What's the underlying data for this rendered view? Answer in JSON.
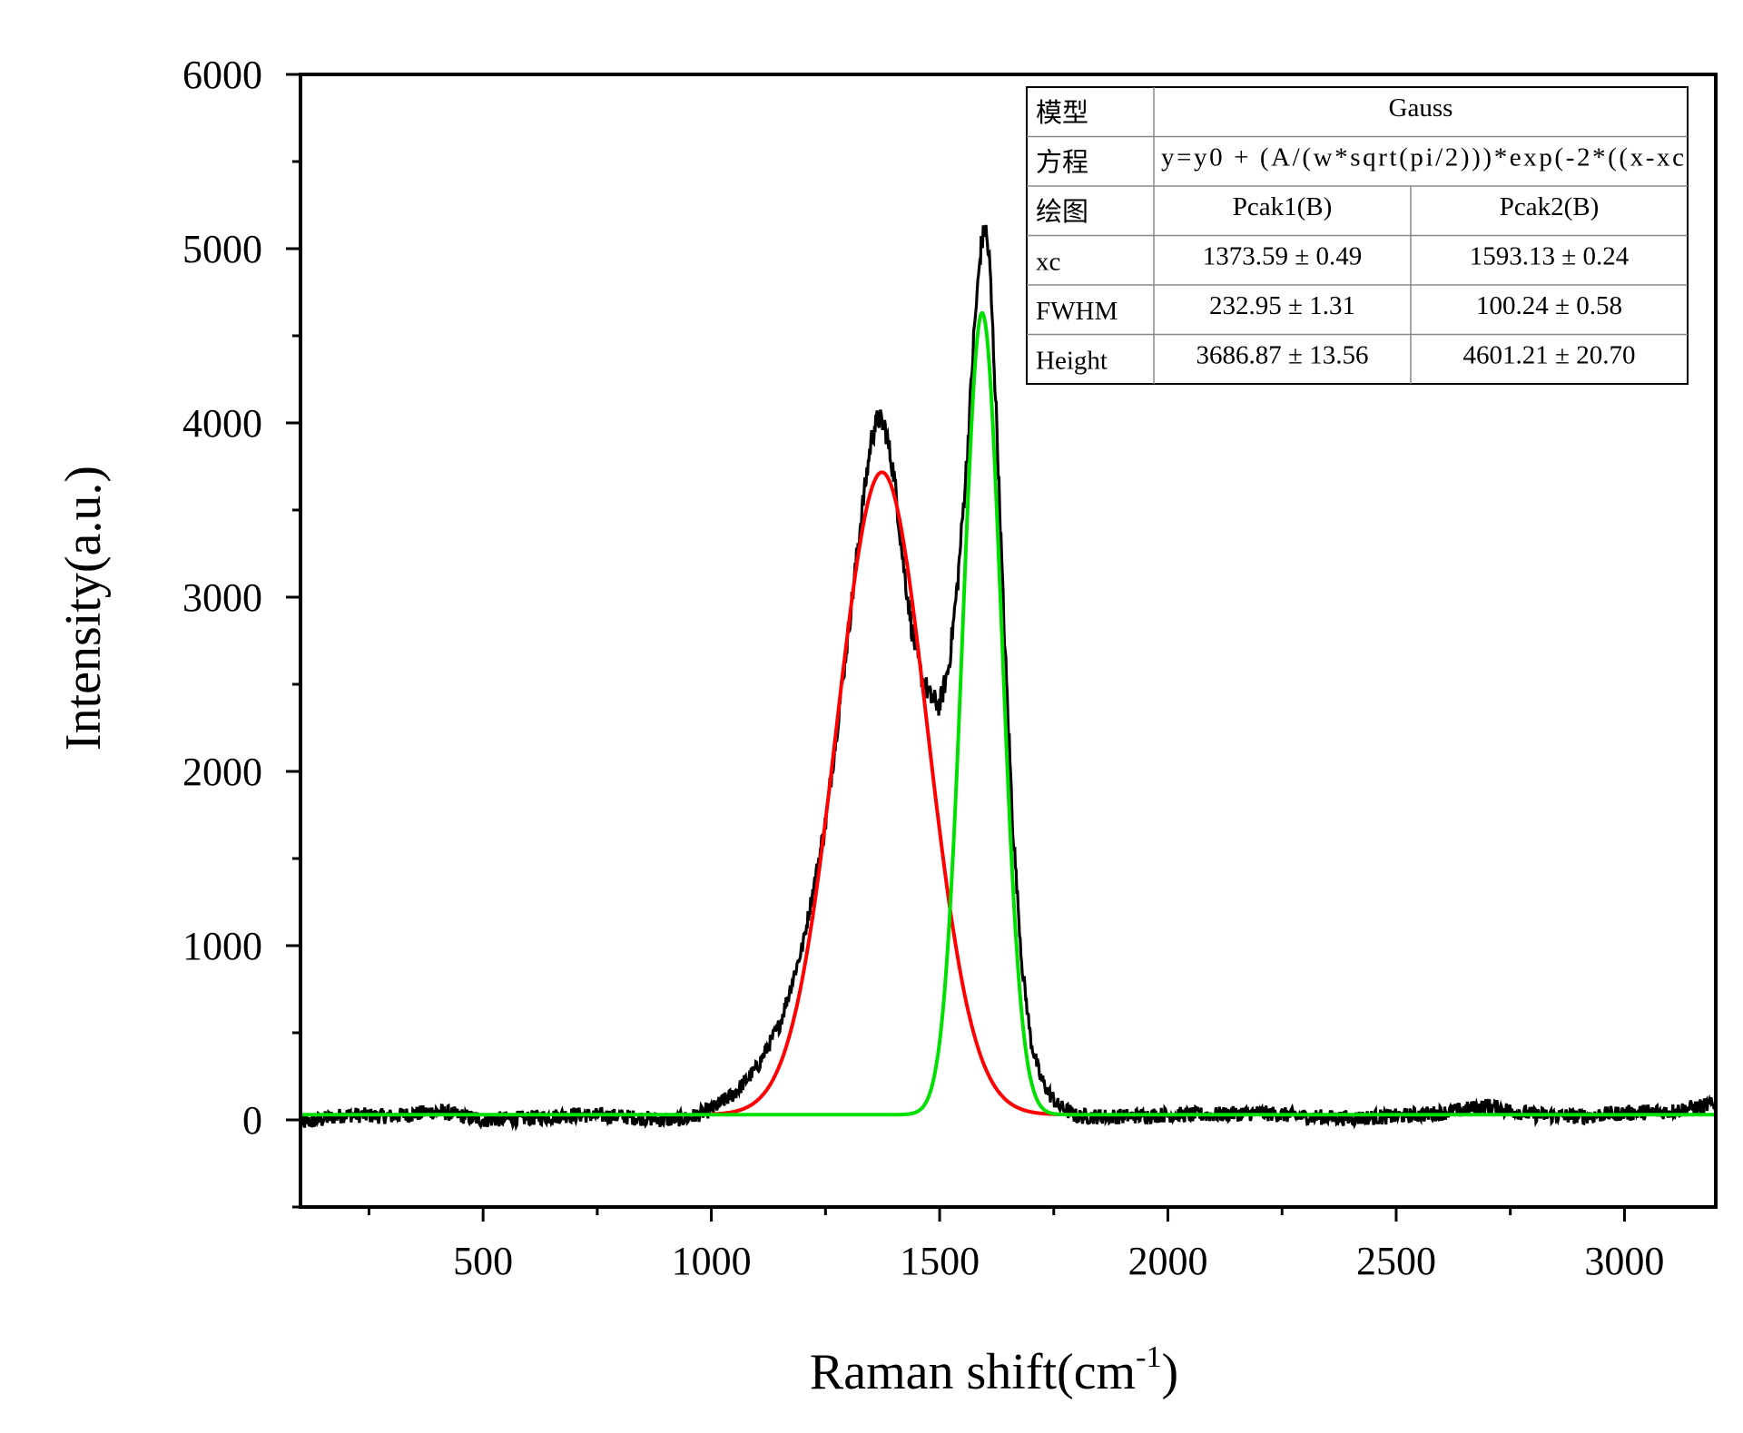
{
  "chart_data": {
    "type": "line",
    "xlabel": "Raman shift(cm",
    "xlabel_sup": "-1",
    "xlabel_close": ")",
    "ylabel": "Intensity(a.u.)",
    "xlim": [
      100,
      3200
    ],
    "ylim": [
      -500,
      6000
    ],
    "x_ticks": [
      500,
      1000,
      1500,
      2000,
      2500,
      3000
    ],
    "y_ticks": [
      0,
      1000,
      2000,
      3000,
      4000,
      5000,
      6000
    ],
    "grid": false,
    "baseline": 30,
    "series": [
      {
        "color": "#000000",
        "noisy": true,
        "points": [
          [
            100,
            -20
          ],
          [
            200,
            30
          ],
          [
            300,
            20
          ],
          [
            400,
            50
          ],
          [
            500,
            0
          ],
          [
            600,
            10
          ],
          [
            700,
            30
          ],
          [
            800,
            20
          ],
          [
            900,
            0
          ],
          [
            950,
            10
          ],
          [
            1000,
            60
          ],
          [
            1050,
            150
          ],
          [
            1100,
            300
          ],
          [
            1150,
            550
          ],
          [
            1200,
            1000
          ],
          [
            1250,
            1700
          ],
          [
            1300,
            2800
          ],
          [
            1330,
            3500
          ],
          [
            1350,
            3900
          ],
          [
            1365,
            4030
          ],
          [
            1380,
            3980
          ],
          [
            1400,
            3700
          ],
          [
            1420,
            3200
          ],
          [
            1440,
            2800
          ],
          [
            1460,
            2550
          ],
          [
            1480,
            2420
          ],
          [
            1500,
            2380
          ],
          [
            1520,
            2600
          ],
          [
            1540,
            3100
          ],
          [
            1560,
            3800
          ],
          [
            1575,
            4500
          ],
          [
            1590,
            5000
          ],
          [
            1600,
            5130
          ],
          [
            1610,
            4900
          ],
          [
            1625,
            4000
          ],
          [
            1640,
            2900
          ],
          [
            1660,
            1700
          ],
          [
            1680,
            900
          ],
          [
            1700,
            450
          ],
          [
            1720,
            250
          ],
          [
            1740,
            150
          ],
          [
            1760,
            80
          ],
          [
            1800,
            20
          ],
          [
            1900,
            20
          ],
          [
            2000,
            30
          ],
          [
            2100,
            30
          ],
          [
            2200,
            40
          ],
          [
            2300,
            20
          ],
          [
            2400,
            10
          ],
          [
            2500,
            20
          ],
          [
            2600,
            40
          ],
          [
            2700,
            80
          ],
          [
            2800,
            30
          ],
          [
            2900,
            20
          ],
          [
            3000,
            40
          ],
          [
            3100,
            50
          ],
          [
            3200,
            90
          ]
        ]
      },
      {
        "color": "#ff0000",
        "noisy": false,
        "gaussian": {
          "xc": 1373.59,
          "fwhm": 232.95,
          "height": 3686.87,
          "x_range": [
            1000,
            1800
          ]
        }
      },
      {
        "color": "#00e000",
        "noisy": false,
        "gaussian": {
          "xc": 1593.13,
          "fwhm": 100.24,
          "height": 4601.21,
          "x_range": [
            100,
            3200
          ]
        }
      }
    ],
    "table": {
      "rows": [
        {
          "label": "模型",
          "merged": "Gauss"
        },
        {
          "label": "方程",
          "merged": "y=y0 + (A/(w*sqrt(pi/2)))*exp(-2*((x-xc"
        },
        {
          "label": "绘图",
          "c1": "Pcak1(B)",
          "c2": "Pcak2(B)"
        },
        {
          "label": "xc",
          "c1": "1373.59 ± 0.49",
          "c2": "1593.13 ± 0.24"
        },
        {
          "label": "FWHM",
          "c1": "232.95 ± 1.31",
          "c2": "100.24 ± 0.58"
        },
        {
          "label": "Height",
          "c1": "3686.87 ± 13.56",
          "c2": "4601.21 ± 20.70"
        }
      ]
    }
  }
}
